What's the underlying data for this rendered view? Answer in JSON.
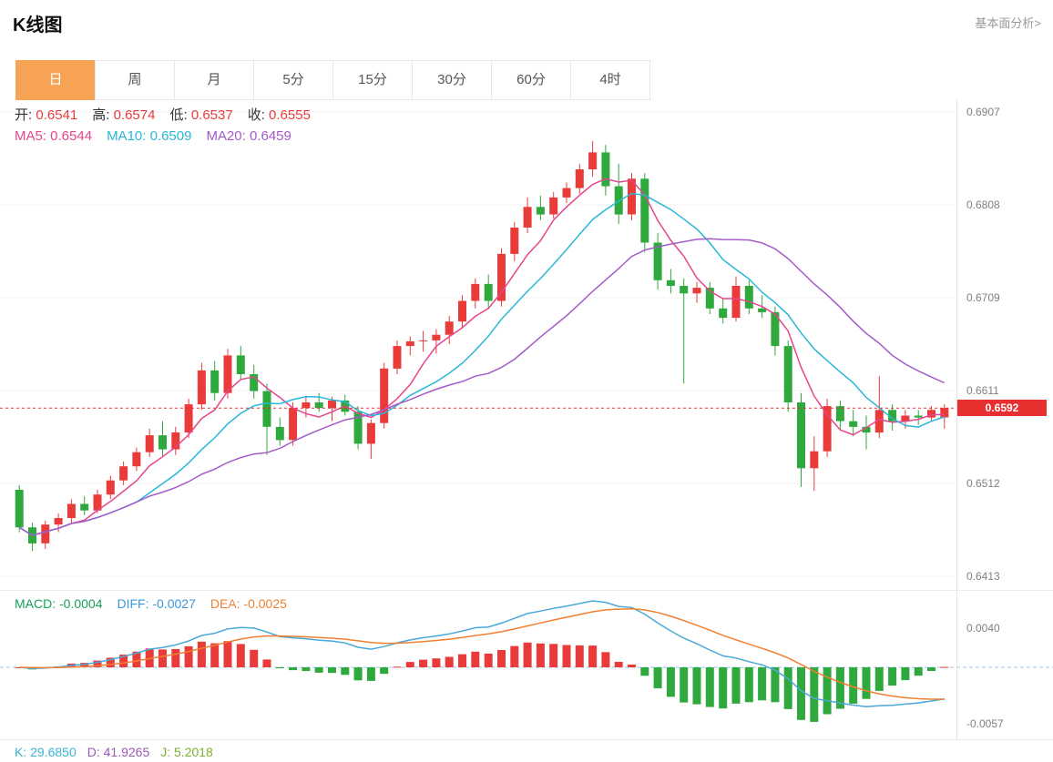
{
  "header": {
    "title": "K线图",
    "link_label": "基本面分析>"
  },
  "tabs": {
    "items": [
      {
        "label": "日",
        "active": true
      },
      {
        "label": "周",
        "active": false
      },
      {
        "label": "月",
        "active": false
      },
      {
        "label": "5分",
        "active": false
      },
      {
        "label": "15分",
        "active": false
      },
      {
        "label": "30分",
        "active": false
      },
      {
        "label": "60分",
        "active": false
      },
      {
        "label": "4时",
        "active": false
      }
    ]
  },
  "main_legend": {
    "ohlc": [
      {
        "label": "开:",
        "value": "0.6541"
      },
      {
        "label": "高:",
        "value": "0.6574"
      },
      {
        "label": "低:",
        "value": "0.6537"
      },
      {
        "label": "收:",
        "value": "0.6555"
      }
    ],
    "ma": [
      {
        "label": "MA5:",
        "value": "0.6544",
        "color": "#e5468e"
      },
      {
        "label": "MA10:",
        "value": "0.6509",
        "color": "#29b7d8"
      },
      {
        "label": "MA20:",
        "value": "0.6459",
        "color": "#a45bc8"
      }
    ]
  },
  "price_axis": {
    "labels": [
      "0.6907",
      "0.6808",
      "0.6709",
      "0.6611",
      "0.6512",
      "0.6413"
    ],
    "max": 0.6907,
    "min": 0.6413
  },
  "current_price": {
    "value": "0.6592",
    "numeric": 0.6592,
    "tag_color": "#e93030"
  },
  "macd_panel": {
    "legend": [
      {
        "label": "MACD:",
        "value": "-0.0004",
        "color": "#18a058"
      },
      {
        "label": "DIFF:",
        "value": "-0.0027",
        "color": "#3a9ad9"
      },
      {
        "label": "DEA:",
        "value": "-0.0025",
        "color": "#f08030"
      }
    ],
    "axis_labels": [
      "0.0040",
      "-0.0057"
    ]
  },
  "kdj_bar": {
    "items": [
      {
        "label": "K:",
        "value": "29.6850",
        "color": "#3bb4d7"
      },
      {
        "label": "D:",
        "value": "41.9265",
        "color": "#9b59b6"
      },
      {
        "label": "J:",
        "value": "5.2018",
        "color": "#7cb232"
      }
    ]
  },
  "chart_data": {
    "type": "candlestick",
    "title": "K线图",
    "timeframe": "日",
    "ohlc_legend": {
      "open": 0.6541,
      "high": 0.6574,
      "low": 0.6537,
      "close": 0.6555
    },
    "ma_legend": {
      "MA5": 0.6544,
      "MA10": 0.6509,
      "MA20": 0.6459
    },
    "current_price": 0.6592,
    "y_axis": {
      "ticks": [
        0.6907,
        0.6808,
        0.6709,
        0.6611,
        0.6512,
        0.6413
      ],
      "max": 0.6907,
      "min": 0.6413
    },
    "candles": [
      [
        0.6505,
        0.651,
        0.646,
        0.6465
      ],
      [
        0.6465,
        0.647,
        0.644,
        0.6448
      ],
      [
        0.6448,
        0.6472,
        0.6442,
        0.6468
      ],
      [
        0.6468,
        0.648,
        0.646,
        0.6475
      ],
      [
        0.6475,
        0.6495,
        0.647,
        0.649
      ],
      [
        0.649,
        0.6498,
        0.6478,
        0.6483
      ],
      [
        0.6483,
        0.6505,
        0.648,
        0.65
      ],
      [
        0.65,
        0.652,
        0.6495,
        0.6515
      ],
      [
        0.6515,
        0.6535,
        0.651,
        0.653
      ],
      [
        0.653,
        0.655,
        0.6525,
        0.6545
      ],
      [
        0.6545,
        0.657,
        0.654,
        0.6563
      ],
      [
        0.6563,
        0.6578,
        0.654,
        0.6548
      ],
      [
        0.6548,
        0.6572,
        0.6542,
        0.6566
      ],
      [
        0.6566,
        0.6602,
        0.656,
        0.6596
      ],
      [
        0.6596,
        0.664,
        0.659,
        0.6632
      ],
      [
        0.6632,
        0.6642,
        0.66,
        0.6608
      ],
      [
        0.6608,
        0.6655,
        0.6602,
        0.6648
      ],
      [
        0.6648,
        0.6658,
        0.6622,
        0.6628
      ],
      [
        0.6628,
        0.6638,
        0.6602,
        0.661
      ],
      [
        0.661,
        0.6618,
        0.6542,
        0.6572
      ],
      [
        0.6572,
        0.6582,
        0.6552,
        0.6558
      ],
      [
        0.6558,
        0.6598,
        0.6552,
        0.6592
      ],
      [
        0.6592,
        0.6605,
        0.6582,
        0.6598
      ],
      [
        0.6598,
        0.6608,
        0.6588,
        0.6592
      ],
      [
        0.6592,
        0.6604,
        0.6578,
        0.66
      ],
      [
        0.66,
        0.6606,
        0.6584,
        0.6588
      ],
      [
        0.6588,
        0.6594,
        0.6548,
        0.6554
      ],
      [
        0.6554,
        0.658,
        0.6538,
        0.6576
      ],
      [
        0.6576,
        0.664,
        0.657,
        0.6634
      ],
      [
        0.6634,
        0.6664,
        0.6628,
        0.6658
      ],
      [
        0.6658,
        0.6668,
        0.6648,
        0.6663
      ],
      [
        0.6663,
        0.6674,
        0.6652,
        0.6664
      ],
      [
        0.6664,
        0.6676,
        0.665,
        0.667
      ],
      [
        0.667,
        0.669,
        0.666,
        0.6684
      ],
      [
        0.6684,
        0.6712,
        0.6678,
        0.6706
      ],
      [
        0.6706,
        0.673,
        0.6698,
        0.6724
      ],
      [
        0.6724,
        0.6734,
        0.6698,
        0.6706
      ],
      [
        0.6706,
        0.6762,
        0.67,
        0.6756
      ],
      [
        0.6756,
        0.679,
        0.6748,
        0.6784
      ],
      [
        0.6784,
        0.6816,
        0.6778,
        0.6806
      ],
      [
        0.6806,
        0.6818,
        0.6792,
        0.6798
      ],
      [
        0.6798,
        0.6822,
        0.6794,
        0.6816
      ],
      [
        0.6816,
        0.6832,
        0.681,
        0.6826
      ],
      [
        0.6826,
        0.6852,
        0.682,
        0.6846
      ],
      [
        0.6846,
        0.6876,
        0.6838,
        0.6864
      ],
      [
        0.6864,
        0.6872,
        0.6818,
        0.6828
      ],
      [
        0.6828,
        0.6852,
        0.6788,
        0.6798
      ],
      [
        0.6798,
        0.6842,
        0.6792,
        0.6836
      ],
      [
        0.6836,
        0.6842,
        0.6758,
        0.6768
      ],
      [
        0.6768,
        0.6778,
        0.6718,
        0.6728
      ],
      [
        0.6728,
        0.674,
        0.6714,
        0.6722
      ],
      [
        0.6722,
        0.673,
        0.6618,
        0.6714
      ],
      [
        0.6714,
        0.6726,
        0.6704,
        0.672
      ],
      [
        0.672,
        0.6726,
        0.6692,
        0.6698
      ],
      [
        0.6698,
        0.6708,
        0.6682,
        0.6688
      ],
      [
        0.6688,
        0.6732,
        0.6684,
        0.6722
      ],
      [
        0.6722,
        0.6728,
        0.6692,
        0.6698
      ],
      [
        0.6698,
        0.6712,
        0.6688,
        0.6694
      ],
      [
        0.6694,
        0.67,
        0.6648,
        0.6658
      ],
      [
        0.6658,
        0.6664,
        0.6588,
        0.6598
      ],
      [
        0.6598,
        0.6608,
        0.6508,
        0.6528
      ],
      [
        0.6528,
        0.6562,
        0.6504,
        0.6546
      ],
      [
        0.6546,
        0.6602,
        0.654,
        0.6594
      ],
      [
        0.6594,
        0.66,
        0.6568,
        0.6578
      ],
      [
        0.6578,
        0.659,
        0.6562,
        0.6572
      ],
      [
        0.6572,
        0.6584,
        0.6548,
        0.6566
      ],
      [
        0.6566,
        0.6626,
        0.656,
        0.659
      ],
      [
        0.659,
        0.6596,
        0.6568,
        0.6578
      ],
      [
        0.6578,
        0.659,
        0.657,
        0.6584
      ],
      [
        0.6584,
        0.659,
        0.6574,
        0.6582
      ],
      [
        0.6582,
        0.6594,
        0.6578,
        0.659
      ],
      [
        0.6582,
        0.6596,
        0.657,
        0.6592
      ]
    ],
    "indicators": {
      "ma_periods": [
        5,
        10,
        20
      ],
      "macd": {
        "params": [
          12,
          26,
          9
        ],
        "legend": {
          "MACD": -0.0004,
          "DIFF": -0.0027,
          "DEA": -0.0025
        },
        "axis_ticks": [
          0.004,
          -0.0057
        ]
      },
      "kdj": {
        "K": 29.685,
        "D": 41.9265,
        "J": 5.2018
      }
    },
    "colors": {
      "up": "#ea3b3b",
      "down": "#2fa93d",
      "ma5": "#e5468e",
      "ma10": "#29b7d8",
      "ma20": "#a45bc8",
      "diff_line": "#4aa8d8",
      "dea_line": "#f08030",
      "zero_line": "#9cc6e8",
      "price_tag": "#e93030",
      "tab_active": "#f7a355"
    }
  }
}
